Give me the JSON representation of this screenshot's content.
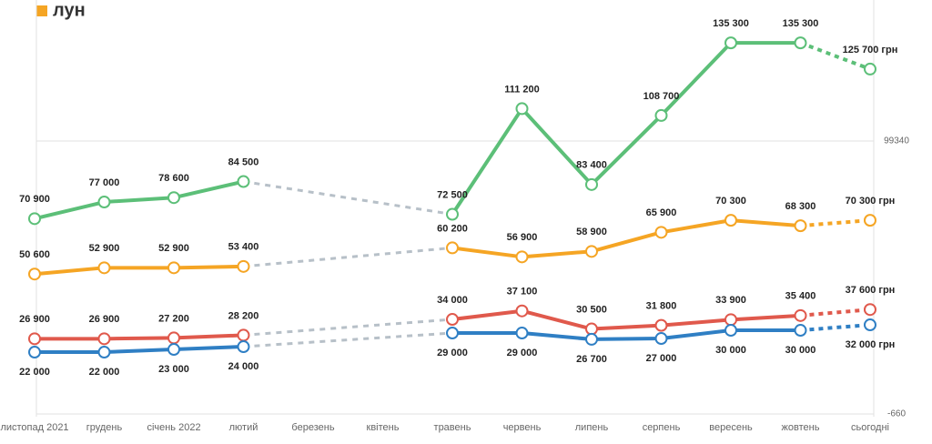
{
  "brand": "лун",
  "chart_data": {
    "type": "line",
    "categories": [
      "листопад 2021",
      "грудень",
      "січень 2022",
      "лютий",
      "березень",
      "квітень",
      "травень",
      "червень",
      "липень",
      "серпень",
      "вересень",
      "жовтень",
      "сьогодні"
    ],
    "series": [
      {
        "color": "#5cbf78",
        "values": [
          70900,
          77000,
          78600,
          84500,
          null,
          null,
          72500,
          111200,
          83400,
          108700,
          135300,
          135300,
          125700
        ],
        "value_labels": [
          "70 900",
          "77 000",
          "78 600",
          "84 500",
          null,
          null,
          "72 500",
          "111 200",
          "83 400",
          "108 700",
          "135 300",
          "135 300",
          "125 700 грн"
        ]
      },
      {
        "color": "#f5a524",
        "values": [
          50600,
          52900,
          52900,
          53400,
          null,
          null,
          60200,
          56900,
          58900,
          65900,
          70300,
          68300,
          70300
        ],
        "value_labels": [
          "50 600",
          "52 900",
          "52 900",
          "53 400",
          null,
          null,
          "60 200",
          "56 900",
          "58 900",
          "65 900",
          "70 300",
          "68 300",
          "70 300 грн"
        ]
      },
      {
        "color": "#e0594c",
        "values": [
          26900,
          26900,
          27200,
          28200,
          null,
          null,
          34000,
          37100,
          30500,
          31800,
          33900,
          35400,
          37600
        ],
        "value_labels": [
          "26 900",
          "26 900",
          "27 200",
          "28 200",
          null,
          null,
          "34 000",
          "37 100",
          "30 500",
          "31 800",
          "33 900",
          "35 400",
          "37 600 грн"
        ]
      },
      {
        "color": "#2f7fc4",
        "values": [
          22000,
          22000,
          23000,
          24000,
          null,
          null,
          29000,
          29000,
          26700,
          27000,
          30000,
          30000,
          32000
        ],
        "value_labels": [
          "22 000",
          "22 000",
          "23 000",
          "24 000",
          null,
          null,
          "29 000",
          "29 000",
          "26 700",
          "27 000",
          "30 000",
          "30 000",
          "32 000 грн"
        ]
      }
    ],
    "ylim": [
      -660,
      149340
    ],
    "yticks": [
      -660,
      99340
    ],
    "grid": true
  }
}
